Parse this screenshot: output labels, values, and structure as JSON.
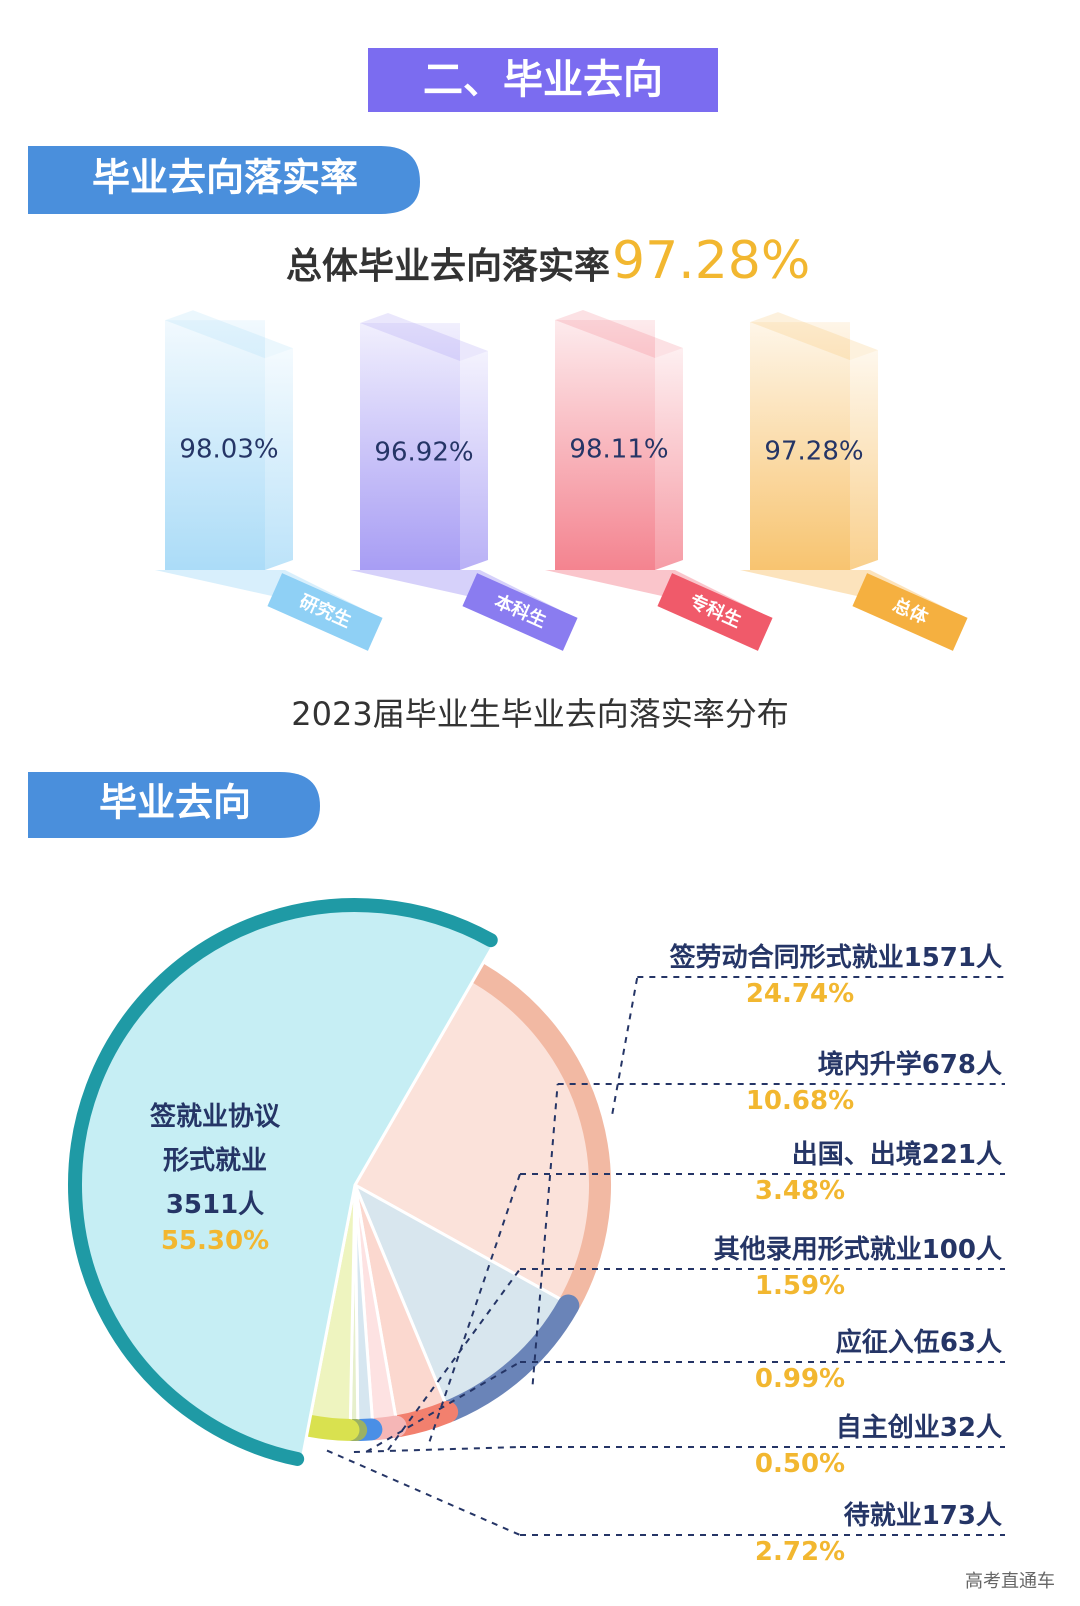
{
  "header": {
    "title": "二、毕业去向"
  },
  "sections": [
    {
      "title": "毕业去向落实率"
    },
    {
      "title": "毕业去向"
    }
  ],
  "headline": {
    "text": "总体毕业去向落实率",
    "value": "97.28%"
  },
  "chart_data": [
    {
      "type": "bar",
      "title": "2023届毕业生毕业去向落实率分布",
      "categories": [
        "研究生",
        "本科生",
        "专科生",
        "总体"
      ],
      "values": [
        98.03,
        96.92,
        98.11,
        97.28
      ],
      "value_labels": [
        "98.03%",
        "96.92%",
        "98.11%",
        "97.28%"
      ],
      "colors": [
        "#8fd0f5",
        "#8a7cf0",
        "#f05a6a",
        "#f5b040"
      ]
    },
    {
      "type": "pie",
      "categories": [
        "签就业协议形式就业",
        "签劳动合同形式就业",
        "境内升学",
        "出国、出境",
        "其他录用形式就业",
        "应征入伍",
        "自主创业",
        "待就业"
      ],
      "count_labels": [
        "3511人",
        "1571人",
        "678人",
        "221人",
        "100人",
        "63人",
        "32人",
        "173人"
      ],
      "values": [
        55.3,
        24.74,
        10.68,
        3.48,
        1.59,
        0.99,
        0.5,
        2.72
      ],
      "value_labels": [
        "55.30%",
        "24.74%",
        "10.68%",
        "3.48%",
        "1.59%",
        "0.99%",
        "0.50%",
        "2.72%"
      ],
      "colors": [
        "#c6eef4",
        "#fbe2da",
        "#d8e6ee",
        "#fbd8cf",
        "#fde2e2",
        "#d6e6f0",
        "#e6efcc",
        "#eef4bf"
      ],
      "arc_colors": [
        "#1f9aa5",
        "#f2b9a3",
        "#6a84b8",
        "#f2806e",
        "#f5b6b6",
        "#4a8fe6",
        "#9bb164",
        "#d9e14f"
      ]
    }
  ],
  "watermark": "高考直通车"
}
